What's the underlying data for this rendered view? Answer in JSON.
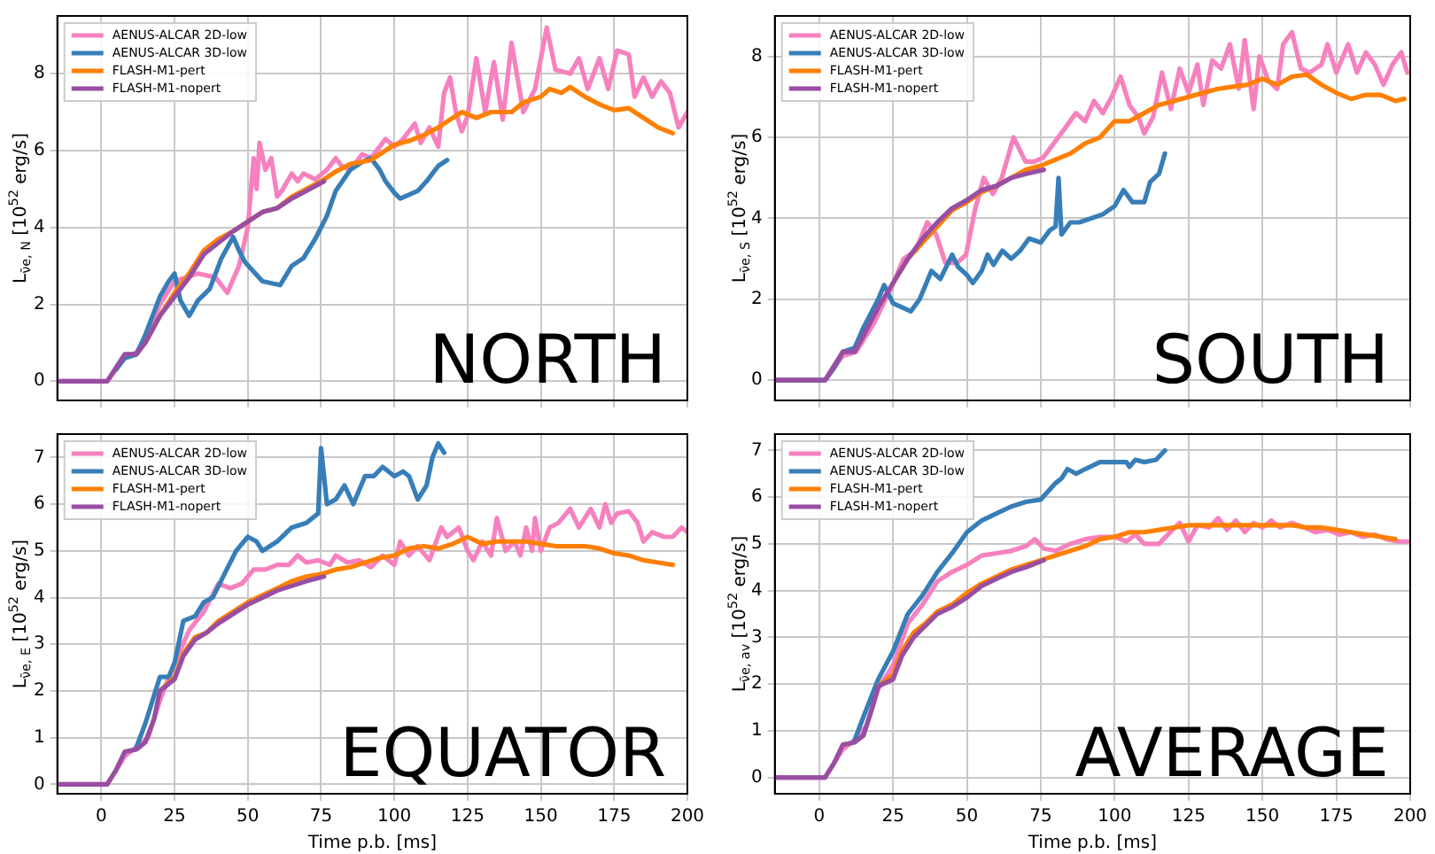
{
  "chart_data": [
    {
      "type": "line",
      "ylabel": "L$_{ν̄e, N}$ [10$^{52}$ erg/s]",
      "annotations": [
        "NORTH"
      ],
      "xlim": [
        -15,
        200
      ],
      "xticks": [
        0,
        25,
        50,
        75,
        100,
        125,
        150,
        175,
        200
      ],
      "ylim": [
        -0.5,
        9.5
      ],
      "yticks": [
        0,
        2,
        4,
        6,
        8
      ],
      "tick_labels": "y",
      "grid": true,
      "legend": "top left",
      "marker": "none",
      "line_style": "solid",
      "series": [
        {
          "name": "AENUS-ALCAR 2D-low",
          "color": "#f781bf",
          "x": [
            -15,
            2,
            5,
            8,
            12,
            16,
            20,
            25,
            33,
            39,
            43,
            47,
            50,
            52,
            53,
            54,
            56,
            58,
            60,
            62,
            65,
            67,
            69,
            73,
            77,
            80,
            82,
            85,
            89,
            92,
            97,
            100,
            103,
            107,
            109,
            112,
            115,
            117,
            119,
            121,
            123,
            125,
            128,
            131,
            134,
            137,
            140,
            144,
            148,
            152,
            155,
            160,
            163,
            166,
            170,
            173,
            176,
            180,
            182,
            185,
            188,
            191,
            194,
            197,
            200
          ],
          "values": [
            0,
            0,
            0.3,
            0.6,
            0.75,
            1.2,
            2.0,
            2.6,
            2.8,
            2.7,
            2.3,
            3.0,
            4.0,
            5.8,
            5.0,
            6.2,
            5.5,
            5.8,
            4.8,
            5.0,
            5.4,
            5.2,
            5.4,
            5.25,
            5.5,
            5.8,
            5.6,
            5.5,
            5.9,
            5.8,
            6.3,
            6.1,
            6.3,
            6.7,
            6.2,
            6.6,
            6.1,
            7.5,
            7.9,
            7.0,
            6.5,
            6.9,
            8.4,
            7.0,
            8.3,
            6.8,
            8.8,
            7.0,
            7.6,
            9.2,
            8.1,
            8.0,
            8.4,
            7.6,
            8.4,
            7.6,
            8.6,
            8.5,
            7.4,
            7.9,
            7.4,
            7.8,
            7.5,
            6.6,
            7.0
          ]
        },
        {
          "name": "AENUS-ALCAR 3D-low",
          "color": "#377eb8",
          "x": [
            5,
            8,
            12,
            15,
            20,
            23,
            25,
            27,
            30,
            33,
            37,
            41,
            45,
            47,
            49,
            55,
            61,
            65,
            69,
            73,
            77,
            80,
            85,
            89,
            92,
            95,
            97,
            100,
            102,
            105,
            108,
            111,
            113,
            115,
            118
          ],
          "values": [
            0.3,
            0.6,
            0.7,
            1.2,
            2.2,
            2.6,
            2.8,
            2.1,
            1.7,
            2.1,
            2.4,
            3.2,
            3.75,
            3.4,
            3.1,
            2.6,
            2.5,
            3.0,
            3.2,
            3.7,
            4.3,
            4.95,
            5.5,
            5.7,
            5.8,
            5.5,
            5.2,
            4.9,
            4.75,
            4.85,
            4.95,
            5.2,
            5.4,
            5.6,
            5.75
          ]
        },
        {
          "name": "FLASH-M1-pert",
          "color": "#ff7f00",
          "x": [
            15,
            20,
            25,
            30,
            35,
            40,
            45,
            50,
            55,
            60,
            65,
            70,
            75,
            80,
            85,
            92,
            100,
            105,
            110,
            115,
            119,
            123,
            128,
            133,
            140,
            144,
            150,
            153,
            157,
            160,
            165,
            170,
            175,
            180,
            185,
            190,
            195
          ],
          "values": [
            1.0,
            1.7,
            2.3,
            2.8,
            3.4,
            3.7,
            3.9,
            4.15,
            4.4,
            4.5,
            4.8,
            5.0,
            5.2,
            5.45,
            5.65,
            5.75,
            6.15,
            6.25,
            6.4,
            6.6,
            6.8,
            7.0,
            6.85,
            7.0,
            7.0,
            7.25,
            7.4,
            7.6,
            7.5,
            7.65,
            7.4,
            7.2,
            7.05,
            7.1,
            6.85,
            6.6,
            6.45
          ]
        },
        {
          "name": "FLASH-M1-nopert",
          "color": "#984ea3",
          "x": [
            -15,
            2,
            5,
            8,
            12,
            15,
            20,
            25,
            30,
            35,
            40,
            45,
            50,
            55,
            60,
            65,
            70,
            76
          ],
          "values": [
            0,
            0,
            0.35,
            0.7,
            0.7,
            1.0,
            1.7,
            2.2,
            2.7,
            3.3,
            3.6,
            3.9,
            4.15,
            4.4,
            4.5,
            4.75,
            4.95,
            5.2
          ]
        }
      ]
    },
    {
      "type": "line",
      "ylabel": "L$_{ν̄e, S}$ [10$^{52}$ erg/s]",
      "annotations": [
        "SOUTH"
      ],
      "xlim": [
        -15,
        200
      ],
      "xticks": [
        0,
        25,
        50,
        75,
        100,
        125,
        150,
        175,
        200
      ],
      "ylim": [
        -0.5,
        9.0
      ],
      "yticks": [
        0,
        2,
        4,
        6,
        8
      ],
      "tick_labels": "y",
      "grid": true,
      "legend": "top left",
      "marker": "none",
      "line_style": "solid",
      "series": [
        {
          "name": "AENUS-ALCAR 2D-low",
          "color": "#f781bf",
          "x": [
            -15,
            2,
            5,
            8,
            12.5,
            18.5,
            24.5,
            28.6,
            32.6,
            36.6,
            39.6,
            42.7,
            46.7,
            49.7,
            52.7,
            55.7,
            58.8,
            61.8,
            65.8,
            69.8,
            72.8,
            75.8,
            78.9,
            82.9,
            86.9,
            90,
            93,
            96,
            99,
            102,
            105,
            108,
            110,
            113,
            116,
            119,
            122,
            125,
            128,
            130,
            133,
            136,
            139,
            142,
            144,
            147,
            149,
            152,
            155,
            157,
            160,
            163,
            166,
            170,
            172,
            175,
            179,
            182,
            185,
            188,
            191,
            194,
            197,
            199
          ],
          "values": [
            0,
            0,
            0.3,
            0.6,
            0.7,
            1.4,
            2.3,
            3.0,
            3.2,
            3.9,
            3.6,
            2.9,
            2.9,
            3.1,
            4.2,
            5.0,
            4.6,
            5.0,
            6.0,
            5.4,
            5.4,
            5.5,
            5.8,
            6.2,
            6.6,
            6.4,
            6.9,
            6.6,
            7.0,
            7.5,
            6.8,
            6.5,
            6.1,
            6.5,
            7.6,
            6.7,
            7.7,
            7.1,
            7.8,
            6.8,
            7.9,
            7.7,
            8.3,
            7.2,
            8.4,
            6.7,
            8.0,
            7.4,
            7.2,
            8.3,
            8.6,
            7.7,
            7.6,
            7.8,
            8.3,
            7.6,
            8.3,
            7.6,
            8.1,
            7.8,
            7.3,
            7.8,
            8.1,
            7.6
          ]
        },
        {
          "name": "AENUS-ALCAR 3D-low",
          "color": "#377eb8",
          "x": [
            -15,
            2,
            5,
            8,
            12,
            15,
            20,
            22,
            25,
            28,
            31,
            34,
            38,
            41,
            45,
            47,
            50,
            52,
            55,
            57,
            59,
            62,
            65,
            68,
            71,
            75,
            78,
            80,
            81,
            82,
            85,
            88,
            92,
            96,
            100,
            103,
            106,
            110,
            112,
            115,
            117
          ],
          "values": [
            0,
            0,
            0.3,
            0.7,
            0.8,
            1.3,
            2.0,
            2.35,
            1.9,
            1.8,
            1.7,
            2.0,
            2.7,
            2.5,
            3.1,
            2.8,
            2.6,
            2.4,
            2.7,
            3.1,
            2.85,
            3.2,
            3.0,
            3.2,
            3.5,
            3.4,
            3.7,
            3.8,
            5.0,
            3.6,
            3.9,
            3.9,
            4.0,
            4.1,
            4.3,
            4.7,
            4.4,
            4.4,
            4.9,
            5.1,
            5.6
          ]
        },
        {
          "name": "FLASH-M1-pert",
          "color": "#ff7f00",
          "x": [
            25,
            30,
            35,
            40,
            45,
            50,
            55,
            60,
            65,
            70,
            75,
            80,
            85,
            90,
            95,
            100,
            105,
            110,
            115,
            120,
            125,
            130,
            135,
            140,
            145,
            150,
            155,
            160,
            165,
            170,
            175,
            180,
            185,
            190,
            195,
            198
          ],
          "values": [
            2.4,
            3.0,
            3.4,
            3.8,
            4.2,
            4.4,
            4.65,
            4.8,
            5.0,
            5.2,
            5.3,
            5.45,
            5.6,
            5.85,
            6.0,
            6.4,
            6.4,
            6.6,
            6.8,
            6.9,
            7.0,
            7.1,
            7.2,
            7.25,
            7.3,
            7.45,
            7.3,
            7.5,
            7.55,
            7.3,
            7.1,
            6.95,
            7.05,
            7.05,
            6.9,
            6.95
          ]
        },
        {
          "name": "FLASH-M1-nopert",
          "color": "#984ea3",
          "x": [
            -15,
            2,
            5,
            8,
            12,
            15,
            20,
            25,
            30,
            35,
            40,
            45,
            50,
            55,
            60,
            65,
            70,
            76
          ],
          "values": [
            0,
            0,
            0.35,
            0.7,
            0.7,
            1.1,
            1.8,
            2.4,
            3.0,
            3.5,
            3.9,
            4.25,
            4.45,
            4.7,
            4.8,
            5.0,
            5.1,
            5.2
          ]
        }
      ]
    },
    {
      "type": "line",
      "xlabel": "Time p.b. [ms]",
      "ylabel": "L$_{ν̄e, E}$ [10$^{52}$ erg/s]",
      "annotations": [
        "EQUATOR"
      ],
      "xlim": [
        -15,
        200
      ],
      "xticks": [
        0,
        25,
        50,
        75,
        100,
        125,
        150,
        175,
        200
      ],
      "ylim": [
        -0.2,
        7.5
      ],
      "yticks": [
        0,
        1,
        2,
        3,
        4,
        5,
        6,
        7
      ],
      "grid": true,
      "legend": "top left",
      "marker": "none",
      "line_style": "solid",
      "series": [
        {
          "name": "AENUS-ALCAR 2D-low",
          "color": "#f781bf",
          "x": [
            -15,
            2,
            5,
            8,
            12,
            16,
            20,
            25,
            30,
            35,
            40,
            44,
            48,
            52,
            56,
            60,
            64,
            67,
            70,
            74,
            78,
            80,
            84,
            88,
            92,
            96,
            100,
            102,
            105,
            108,
            112,
            116,
            118,
            122,
            125,
            127,
            130,
            133,
            135,
            138,
            141,
            143,
            145,
            147,
            148,
            150,
            153,
            156,
            160,
            163,
            167,
            170,
            172,
            174,
            176,
            180,
            183,
            185,
            188,
            192,
            195,
            198,
            200
          ],
          "values": [
            0,
            0,
            0.3,
            0.6,
            0.8,
            1.0,
            1.8,
            2.6,
            3.3,
            3.7,
            4.3,
            4.2,
            4.3,
            4.6,
            4.6,
            4.7,
            4.7,
            4.9,
            4.75,
            4.8,
            4.7,
            4.9,
            4.75,
            4.8,
            4.65,
            4.9,
            4.7,
            5.2,
            4.9,
            5.1,
            4.8,
            5.5,
            5.3,
            5.5,
            5.0,
            4.8,
            5.2,
            4.9,
            5.7,
            5.0,
            5.2,
            4.9,
            5.5,
            5.0,
            5.7,
            5.0,
            5.5,
            5.6,
            5.9,
            5.5,
            5.9,
            5.5,
            6.0,
            5.6,
            5.8,
            5.85,
            5.6,
            5.2,
            5.4,
            5.3,
            5.3,
            5.5,
            5.4
          ]
        },
        {
          "name": "AENUS-ALCAR 3D-low",
          "color": "#377eb8",
          "x": [
            12,
            15,
            18,
            20,
            23,
            25,
            28,
            32,
            35,
            38,
            42,
            46,
            50,
            53,
            55,
            60,
            65,
            70,
            74,
            75,
            77,
            80,
            83,
            86,
            90,
            93,
            96,
            100,
            103,
            105,
            108,
            111,
            113,
            115,
            117
          ],
          "values": [
            0.8,
            1.3,
            1.9,
            2.3,
            2.3,
            2.6,
            3.5,
            3.6,
            3.9,
            4.0,
            4.5,
            5.0,
            5.3,
            5.2,
            5.0,
            5.2,
            5.5,
            5.6,
            5.8,
            7.2,
            6.0,
            6.1,
            6.4,
            6.0,
            6.6,
            6.6,
            6.8,
            6.6,
            6.7,
            6.6,
            6.1,
            6.4,
            7.0,
            7.3,
            7.1
          ]
        },
        {
          "name": "FLASH-M1-pert",
          "color": "#ff7f00",
          "x": [
            20,
            25,
            28,
            32,
            36,
            40,
            45,
            50,
            55,
            60,
            65,
            70,
            75,
            80,
            85,
            90,
            95,
            100,
            105,
            110,
            115,
            120,
            125,
            130,
            135,
            140,
            145,
            150,
            155,
            160,
            165,
            170,
            175,
            180,
            185,
            190,
            195
          ],
          "values": [
            2.0,
            2.3,
            2.8,
            3.15,
            3.25,
            3.5,
            3.7,
            3.9,
            4.05,
            4.2,
            4.35,
            4.45,
            4.5,
            4.6,
            4.65,
            4.75,
            4.85,
            4.9,
            5.05,
            5.1,
            5.05,
            5.15,
            5.3,
            5.15,
            5.2,
            5.2,
            5.2,
            5.15,
            5.1,
            5.1,
            5.1,
            5.05,
            4.95,
            4.9,
            4.8,
            4.75,
            4.7
          ]
        },
        {
          "name": "FLASH-M1-nopert",
          "color": "#984ea3",
          "x": [
            -15,
            2,
            5,
            8,
            12,
            15,
            18,
            20,
            25,
            28,
            32,
            36,
            40,
            45,
            50,
            55,
            60,
            65,
            70,
            76
          ],
          "values": [
            0,
            0,
            0.3,
            0.7,
            0.75,
            0.9,
            1.4,
            2.0,
            2.25,
            2.75,
            3.1,
            3.25,
            3.45,
            3.65,
            3.85,
            4.0,
            4.15,
            4.25,
            4.35,
            4.45
          ]
        }
      ]
    },
    {
      "type": "line",
      "xlabel": "Time p.b. [ms]",
      "ylabel": "L$_{ν̄e, av}$ [10$^{52}$ erg/s]",
      "annotations": [
        "AVERAGE"
      ],
      "xlim": [
        -15,
        200
      ],
      "xticks": [
        0,
        25,
        50,
        75,
        100,
        125,
        150,
        175,
        200
      ],
      "ylim": [
        -0.35,
        7.35
      ],
      "yticks": [
        0,
        1,
        2,
        3,
        4,
        5,
        6,
        7
      ],
      "grid": true,
      "legend": "top left",
      "marker": "none",
      "line_style": "solid",
      "series": [
        {
          "name": "AENUS-ALCAR 2D-low",
          "color": "#f781bf",
          "x": [
            -15,
            2,
            5,
            8,
            12,
            16,
            20,
            25,
            30,
            35,
            40,
            45,
            50,
            55,
            60,
            65,
            70,
            73,
            76,
            80,
            85,
            90,
            95,
            100,
            104,
            107,
            110,
            115,
            118,
            122,
            125,
            128,
            132,
            135,
            138,
            141,
            144,
            147,
            150,
            153,
            156,
            160,
            164,
            168,
            172,
            176,
            180,
            184,
            188,
            192,
            196,
            200
          ],
          "values": [
            0,
            0,
            0.3,
            0.6,
            0.8,
            1.1,
            1.9,
            2.4,
            3.3,
            3.7,
            4.2,
            4.4,
            4.55,
            4.75,
            4.8,
            4.85,
            4.95,
            5.1,
            4.9,
            4.85,
            5.0,
            5.1,
            5.15,
            5.15,
            5.05,
            5.2,
            5.0,
            5.0,
            5.2,
            5.45,
            5.05,
            5.4,
            5.35,
            5.55,
            5.3,
            5.5,
            5.25,
            5.45,
            5.35,
            5.5,
            5.35,
            5.45,
            5.35,
            5.25,
            5.3,
            5.2,
            5.25,
            5.15,
            5.2,
            5.1,
            5.05,
            5.05
          ]
        },
        {
          "name": "AENUS-ALCAR 3D-low",
          "color": "#377eb8",
          "x": [
            12,
            15,
            20,
            25,
            30,
            35,
            40,
            45,
            50,
            55,
            60,
            65,
            70,
            75,
            80,
            82,
            84,
            87,
            90,
            95,
            100,
            104,
            105,
            107,
            110,
            114,
            117
          ],
          "values": [
            0.8,
            1.3,
            2.1,
            2.7,
            3.5,
            3.9,
            4.4,
            4.8,
            5.25,
            5.5,
            5.65,
            5.8,
            5.9,
            5.95,
            6.3,
            6.4,
            6.6,
            6.5,
            6.6,
            6.75,
            6.75,
            6.75,
            6.65,
            6.8,
            6.75,
            6.8,
            7.0
          ]
        },
        {
          "name": "FLASH-M1-pert",
          "color": "#ff7f00",
          "x": [
            20,
            25,
            28,
            32,
            36,
            40,
            45,
            50,
            55,
            60,
            65,
            70,
            75,
            80,
            85,
            90,
            95,
            100,
            105,
            110,
            115,
            120,
            125,
            130,
            135,
            140,
            145,
            150,
            155,
            160,
            165,
            170,
            175,
            180,
            185,
            190,
            195
          ],
          "values": [
            1.95,
            2.2,
            2.7,
            3.1,
            3.3,
            3.55,
            3.7,
            3.95,
            4.15,
            4.3,
            4.45,
            4.55,
            4.65,
            4.75,
            4.85,
            4.95,
            5.1,
            5.15,
            5.25,
            5.25,
            5.3,
            5.35,
            5.4,
            5.4,
            5.4,
            5.4,
            5.4,
            5.4,
            5.4,
            5.4,
            5.35,
            5.35,
            5.3,
            5.25,
            5.2,
            5.15,
            5.1
          ]
        },
        {
          "name": "FLASH-M1-nopert",
          "color": "#984ea3",
          "x": [
            -15,
            2,
            5,
            8,
            12,
            15,
            18,
            20,
            25,
            28,
            32,
            36,
            40,
            45,
            50,
            55,
            60,
            65,
            70,
            76
          ],
          "values": [
            0,
            0,
            0.3,
            0.7,
            0.75,
            0.9,
            1.5,
            1.95,
            2.1,
            2.6,
            3.0,
            3.25,
            3.5,
            3.65,
            3.85,
            4.1,
            4.25,
            4.4,
            4.5,
            4.65
          ]
        }
      ]
    }
  ]
}
